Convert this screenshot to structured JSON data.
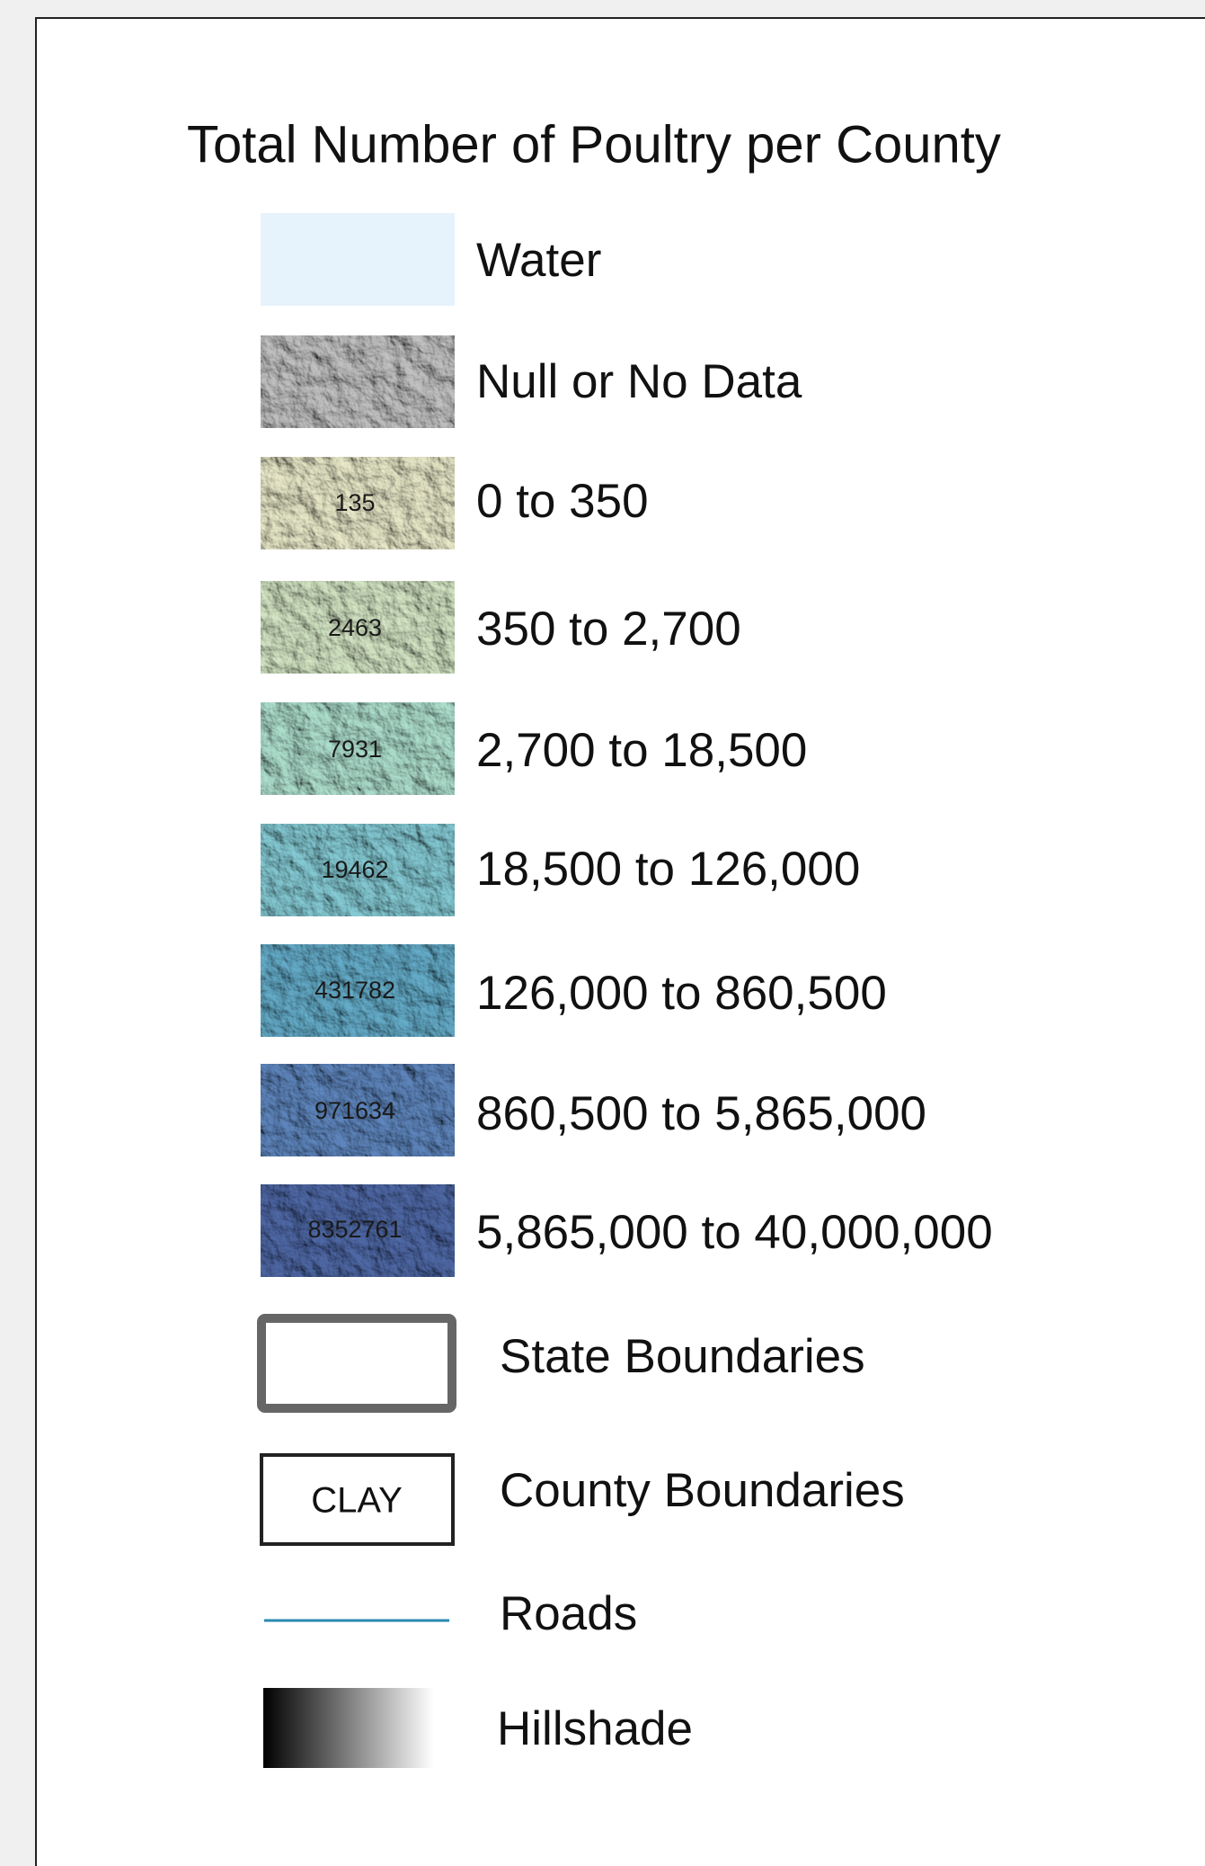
{
  "title": "Total Number of Poultry per County",
  "items": [
    {
      "label": "Water"
    },
    {
      "label": "Null or No Data"
    },
    {
      "label": "0 to 350",
      "sample": "135"
    },
    {
      "label": "350 to 2,700",
      "sample": "2463"
    },
    {
      "label": "2,700 to 18,500",
      "sample": "7931"
    },
    {
      "label": "18,500 to 126,000",
      "sample": "19462"
    },
    {
      "label": "126,000 to 860,500",
      "sample": "431782"
    },
    {
      "label": "860,500 to 5,865,000",
      "sample": "971634"
    },
    {
      "label": "5,865,000 to 40,000,000",
      "sample": "8352761"
    }
  ],
  "lines": [
    {
      "label": "State Boundaries"
    },
    {
      "label": "County Boundaries",
      "sample": "CLAY"
    },
    {
      "label": "Roads"
    },
    {
      "label": "Hillshade"
    }
  ]
}
